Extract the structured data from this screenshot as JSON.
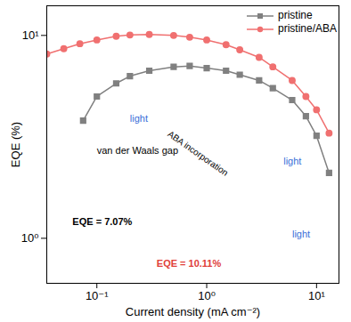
{
  "chart_data": {
    "type": "line",
    "x_label": "Current density (mA cm⁻²)",
    "y_label": "EQE (%)",
    "log": true,
    "legend": "top-right",
    "xlim": [
      0.035,
      16
    ],
    "ylim": [
      0.6,
      14
    ],
    "xticks": [
      {
        "value": 0.1,
        "label": "10⁻¹"
      },
      {
        "value": 1,
        "label": "10⁰"
      },
      {
        "value": 10,
        "label": "10¹"
      }
    ],
    "yticks": [
      {
        "value": 1,
        "label": "10⁰"
      },
      {
        "value": 10,
        "label": "10¹"
      }
    ],
    "series": [
      {
        "name": "pristine",
        "color": "#808080",
        "marker": "square",
        "x": [
          0.075,
          0.1,
          0.15,
          0.2,
          0.3,
          0.5,
          0.7,
          1,
          1.5,
          2,
          3,
          4,
          6,
          8,
          10,
          13
        ],
        "values": [
          3.8,
          5.0,
          5.8,
          6.3,
          6.7,
          7.0,
          7.07,
          6.9,
          6.7,
          6.4,
          6.0,
          5.5,
          4.8,
          4.0,
          3.2,
          2.1
        ]
      },
      {
        "name": "pristine/ABA",
        "color": "#f07070",
        "marker": "circle",
        "x": [
          0.035,
          0.05,
          0.07,
          0.1,
          0.15,
          0.2,
          0.3,
          0.5,
          0.7,
          1,
          1.5,
          2,
          3,
          4,
          6,
          8,
          10,
          13
        ],
        "values": [
          8.1,
          8.6,
          9.1,
          9.5,
          9.9,
          10.05,
          10.11,
          10.0,
          9.8,
          9.5,
          9.0,
          8.5,
          7.8,
          7.0,
          6.0,
          5.0,
          4.3,
          3.3
        ]
      }
    ],
    "annotations": [
      {
        "text": "van der Waals gap",
        "x": 0.1,
        "y": 2.7,
        "color": "#000000"
      },
      {
        "text": "light",
        "x": 0.2,
        "y": 3.9,
        "color": "#3a6fd8"
      },
      {
        "text": "ABA incorporation",
        "x": 0.45,
        "y": 3.3,
        "color": "#000000"
      },
      {
        "text": "light",
        "x": 5,
        "y": 2.4,
        "color": "#3a6fd8"
      },
      {
        "text": "light",
        "x": 6,
        "y": 1.05,
        "color": "#3a6fd8"
      },
      {
        "text": "EQE = 7.07%",
        "x": 0.06,
        "y": 1.2,
        "color": "#000000"
      },
      {
        "text": "EQE = 10.11%",
        "x": 0.35,
        "y": 0.75,
        "color": "#e0403a"
      }
    ]
  }
}
